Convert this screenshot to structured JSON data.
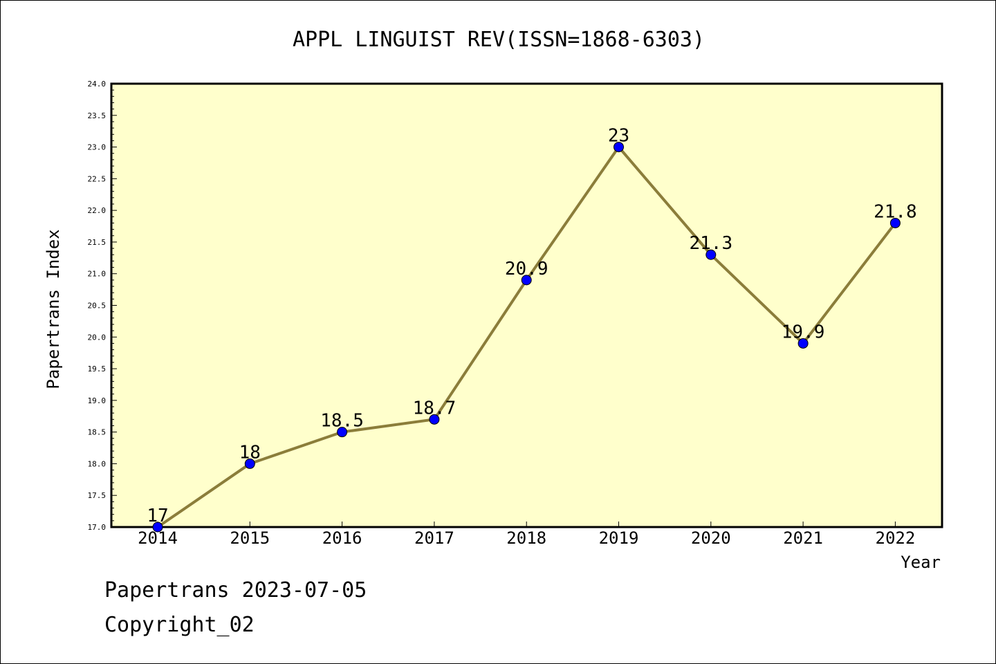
{
  "chart_data": {
    "type": "line",
    "title": "APPL LINGUIST REV(ISSN=1868-6303)",
    "xlabel": "Year",
    "ylabel": "Papertrans Index",
    "categories": [
      "2014",
      "2015",
      "2016",
      "2017",
      "2018",
      "2019",
      "2020",
      "2021",
      "2022"
    ],
    "series": [
      {
        "values": [
          17,
          18,
          18.5,
          18.7,
          20.9,
          23,
          21.3,
          19.9,
          21.8
        ],
        "labels": [
          "17",
          "18",
          "18.5",
          "18.7",
          "20.9",
          "23",
          "21.3",
          "19.9",
          "21.8"
        ]
      }
    ],
    "ylim": [
      17.0,
      24.0
    ],
    "yticks": [
      "17.0",
      "17.5",
      "18.0",
      "18.5",
      "19.0",
      "19.5",
      "20.0",
      "20.5",
      "21.0",
      "21.5",
      "22.0",
      "22.5",
      "23.0",
      "23.5",
      "24.0"
    ],
    "grid": false,
    "colors": {
      "plot_background": "#ffffcc",
      "line": "#8b7d3a",
      "marker": "#0000ff"
    }
  },
  "footer": {
    "line1": "Papertrans 2023-07-05",
    "line2": "Copyright_02"
  }
}
